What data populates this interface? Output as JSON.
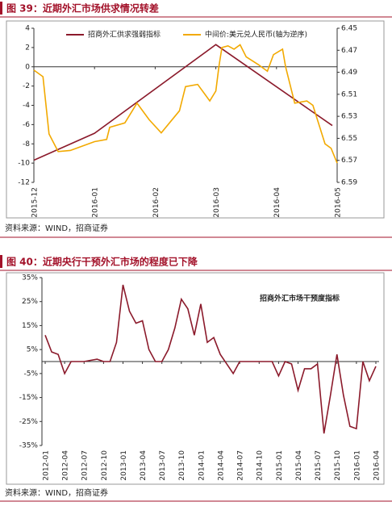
{
  "figure_titles": [
    "图 39：近期外汇市场供求情况转差",
    "图 40：近期央行干预外汇市场的程度已下降"
  ],
  "sources": [
    "资料来源：WIND，招商证券",
    "资料来源：WIND，招商证券"
  ],
  "chart_data": [
    {
      "type": "line",
      "xlim": [
        0,
        5
      ],
      "xticks": [
        {
          "value": 0,
          "label": "2015-12"
        },
        {
          "value": 1,
          "label": "2016-01"
        },
        {
          "value": 2,
          "label": "2016-02"
        },
        {
          "value": 3,
          "label": "2016-03"
        },
        {
          "value": 4,
          "label": "2016-04"
        },
        {
          "value": 5,
          "label": "2016-05"
        }
      ],
      "ylim": [
        -12,
        4
      ],
      "yticks": [
        4,
        2,
        0,
        -2,
        -4,
        -6,
        -8,
        -10,
        -12
      ],
      "y2lim": [
        6.45,
        6.59
      ],
      "y2_inverted": true,
      "y2ticks": [
        6.45,
        6.47,
        6.49,
        6.51,
        6.53,
        6.55,
        6.57,
        6.59
      ],
      "legend": "top",
      "series": [
        {
          "name": "招商外汇供求强弱指标",
          "color": "#8b1a2b",
          "x": [
            0,
            1,
            3,
            4.92
          ],
          "values": [
            -9.7,
            -6.9,
            2.3,
            -6.1
          ]
        },
        {
          "name": "中间价:美元兑人民币(轴为逆序)",
          "color": "#f2a900",
          "axis": "y2",
          "x": [
            0,
            0.15,
            0.25,
            0.4,
            0.6,
            0.8,
            1.0,
            1.2,
            1.25,
            1.5,
            1.7,
            1.9,
            2.1,
            2.4,
            2.5,
            2.7,
            2.9,
            3.0,
            3.05,
            3.1,
            3.2,
            3.3,
            3.4,
            3.5,
            3.7,
            3.85,
            3.95,
            4.1,
            4.15,
            4.3,
            4.5,
            4.6,
            4.7,
            4.8,
            4.9,
            5.0
          ],
          "values": [
            6.488,
            6.494,
            6.546,
            6.562,
            6.561,
            6.557,
            6.553,
            6.551,
            6.54,
            6.536,
            6.518,
            6.533,
            6.545,
            6.525,
            6.503,
            6.501,
            6.516,
            6.507,
            6.485,
            6.4675,
            6.466,
            6.469,
            6.465,
            6.476,
            6.483,
            6.489,
            6.474,
            6.469,
            6.485,
            6.518,
            6.516,
            6.52,
            6.5375,
            6.555,
            6.559,
            6.5725
          ]
        }
      ]
    },
    {
      "type": "line",
      "annotation": "招商外汇市场干预度指标",
      "categories": [
        "2012-01",
        null,
        null,
        "2012-04",
        null,
        null,
        "2012-07",
        null,
        null,
        "2012-10",
        null,
        null,
        "2013-01",
        null,
        null,
        "2013-04",
        null,
        null,
        "2013-07",
        null,
        null,
        "2013-10",
        null,
        null,
        "2014-01",
        null,
        null,
        "2014-04",
        null,
        null,
        "2014-07",
        null,
        null,
        "2014-10",
        null,
        null,
        "2015-01",
        null,
        null,
        "2015-04",
        null,
        null,
        "2015-07",
        null,
        null,
        "2015-10",
        null,
        null,
        "2016-01",
        null,
        null,
        "2016-04"
      ],
      "ylim": [
        -35,
        35
      ],
      "yticks": [
        {
          "value": 35,
          "label": "35%"
        },
        {
          "value": 25,
          "label": "25%"
        },
        {
          "value": 15,
          "label": "15%"
        },
        {
          "value": 5,
          "label": "5%"
        },
        {
          "value": -5,
          "label": "-5%"
        },
        {
          "value": -15,
          "label": "-15%"
        },
        {
          "value": -25,
          "label": "-25%"
        },
        {
          "value": -35,
          "label": "-35%"
        }
      ],
      "series": [
        {
          "color": "#8b1a2b",
          "values": [
            11,
            4,
            3,
            -5,
            0,
            0,
            0,
            0.5,
            1,
            0,
            0,
            8,
            32,
            21,
            16,
            17,
            5,
            0,
            0,
            5,
            14,
            26,
            22,
            11,
            24,
            8,
            10,
            3,
            -1,
            -5,
            0,
            0,
            0,
            0,
            0,
            0,
            -6,
            0,
            -1,
            -12,
            -3,
            -3,
            -1,
            -30,
            -14,
            3,
            -14,
            -27,
            -28,
            0,
            -8,
            -2
          ]
        }
      ]
    }
  ]
}
